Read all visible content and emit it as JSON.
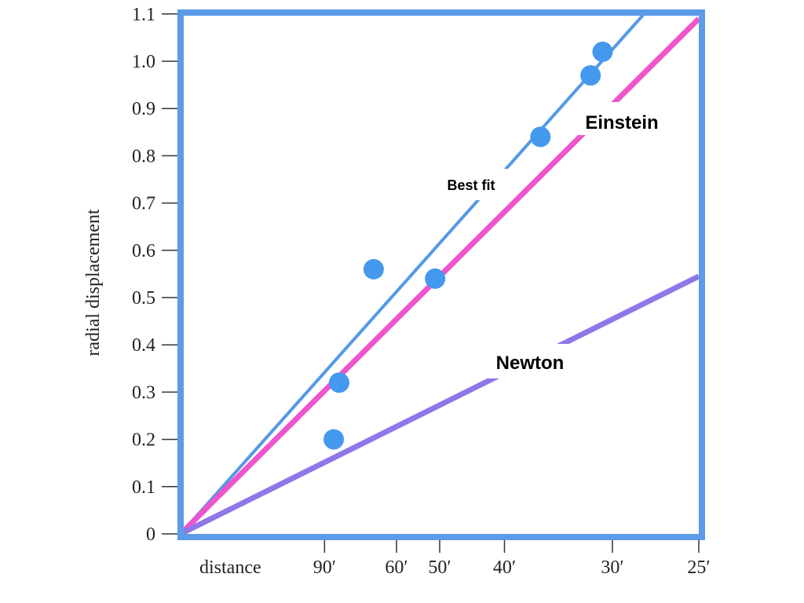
{
  "chart_data": {
    "type": "scatter",
    "xlabel": "distance",
    "ylabel": "radial displacement",
    "x_scale": "reciprocal",
    "x_ticks": [
      {
        "value": 90,
        "label": "90′"
      },
      {
        "value": 60,
        "label": "60′"
      },
      {
        "value": 50,
        "label": "50′"
      },
      {
        "value": 40,
        "label": "40′"
      },
      {
        "value": 30,
        "label": "30′"
      },
      {
        "value": 25,
        "label": "25′"
      }
    ],
    "y_ticks": [
      "0",
      "0.1",
      "0.2",
      "0.3",
      "0.4",
      "0.5",
      "0.6",
      "0.7",
      "0.8",
      "0.9",
      "1.0",
      "1.1"
    ],
    "ylim": [
      0,
      1.1
    ],
    "grid": false,
    "points": {
      "color": "#4499ee",
      "distance": [
        84.6,
        81.7,
        67.1,
        50.9,
        36.0,
        31.6,
        30.7
      ],
      "displacement": [
        0.2,
        0.32,
        0.56,
        0.54,
        0.84,
        0.97,
        1.02
      ]
    },
    "series": [
      {
        "name": "Best fit",
        "type": "line",
        "color": "#5599e6",
        "x": [
          "∞",
          25
        ],
        "y": [
          0,
          1.23
        ]
      },
      {
        "name": "Einstein",
        "type": "line",
        "color": "#ee55cc",
        "x": [
          "∞",
          25
        ],
        "y": [
          0,
          1.09
        ]
      },
      {
        "name": "Newton",
        "type": "line",
        "color": "#9077e8",
        "x": [
          "∞",
          25
        ],
        "y": [
          0,
          0.545
        ]
      }
    ],
    "frame_color": "#5b9be8"
  }
}
